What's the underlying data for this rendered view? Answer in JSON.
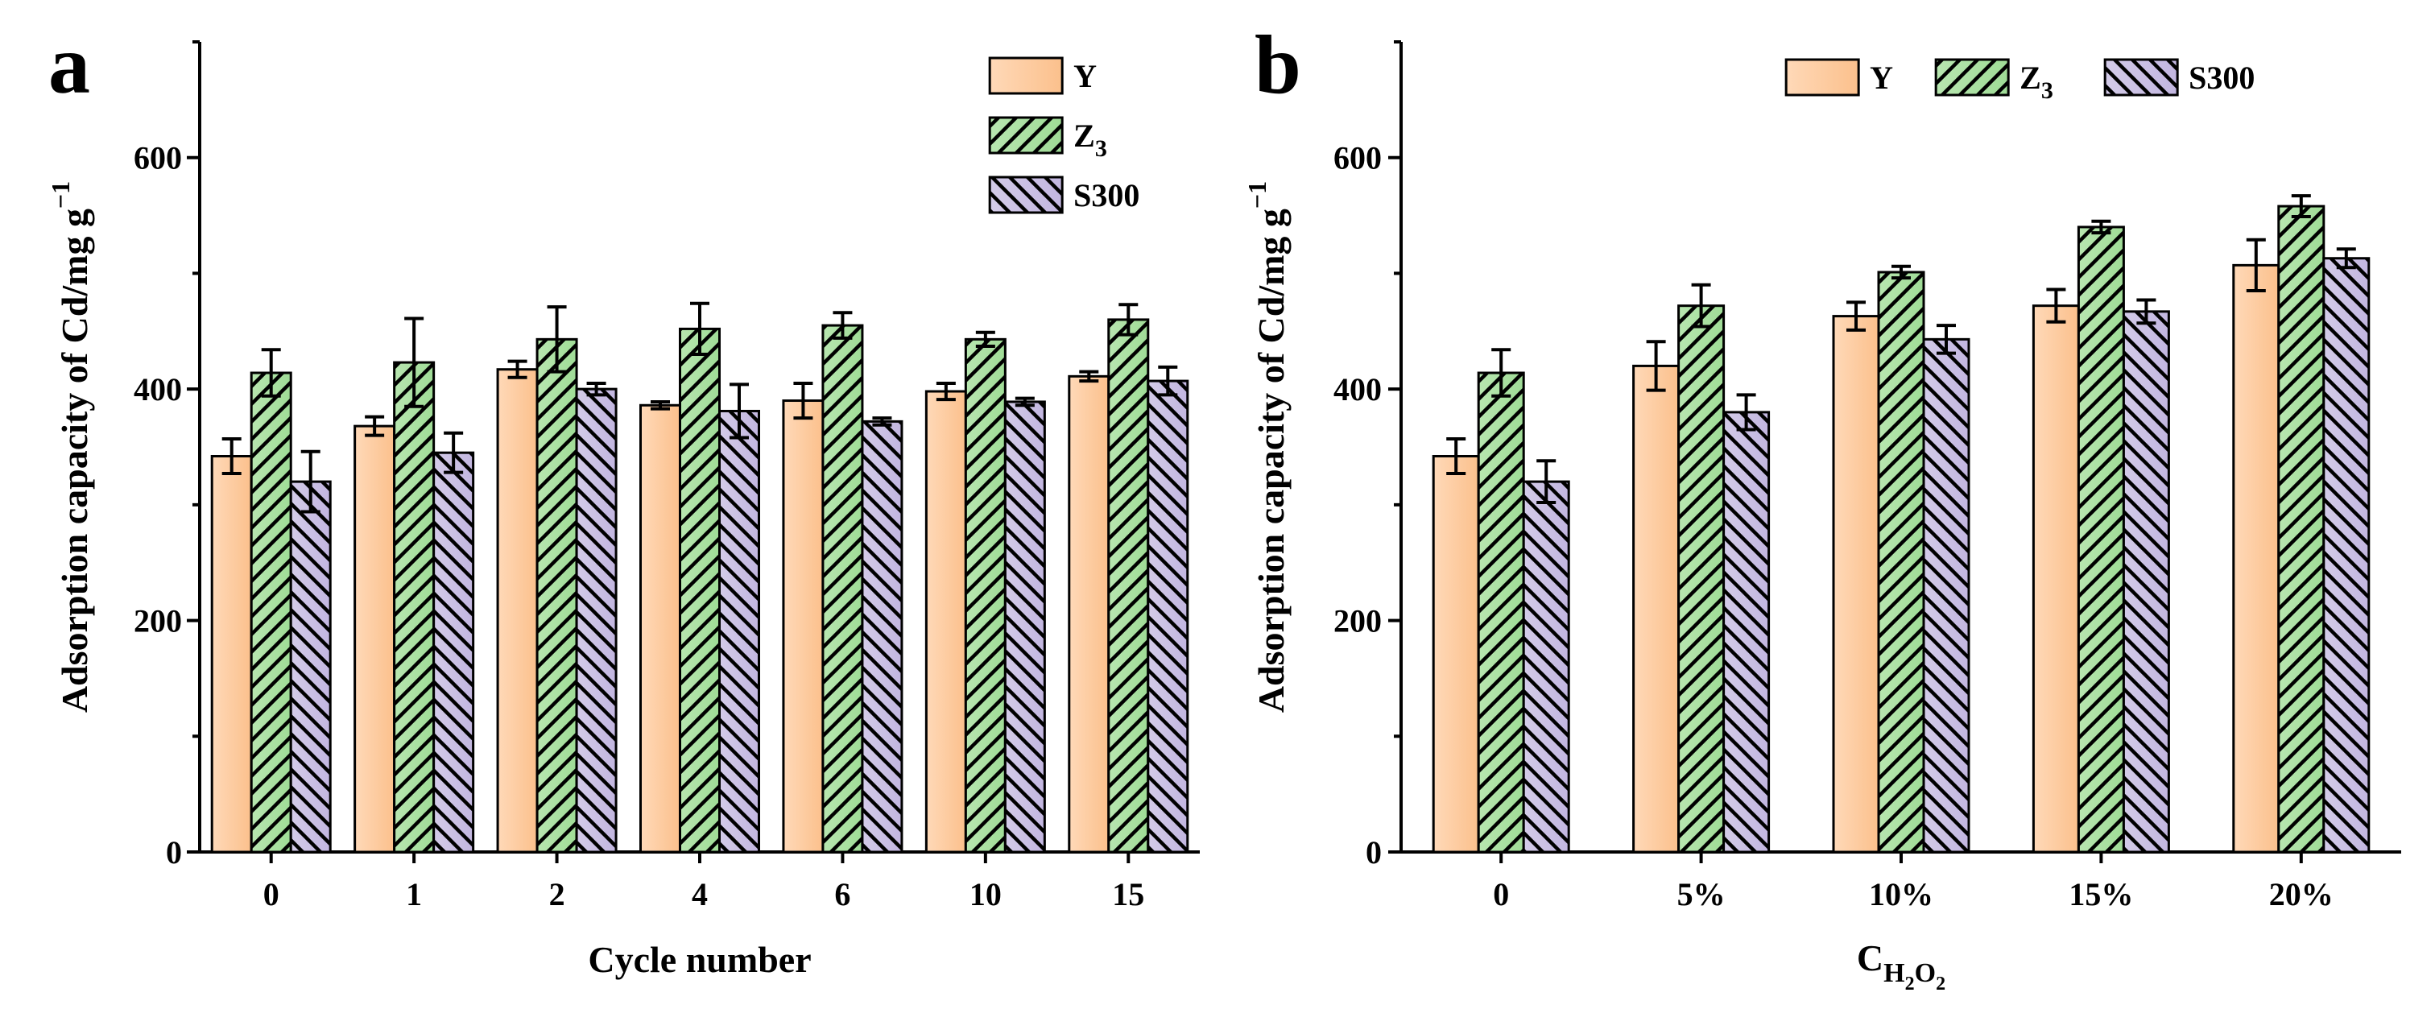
{
  "series_styles": [
    {
      "name": "Y",
      "fill_a": "#ffd9b8",
      "fill_b": "#fbc08c",
      "hatch": "none"
    },
    {
      "name": "Z3",
      "fill_a": "#b8e6b0",
      "fill_b": "#9fdc96",
      "hatch": "forward"
    },
    {
      "name": "S300",
      "fill_a": "#d3cbe8",
      "fill_b": "#c2b6e0",
      "hatch": "backward"
    }
  ],
  "chart_data": [
    {
      "type": "bar",
      "panel_label": "a",
      "xlabel": "Cycle number",
      "ylabel": "Adsorption capacity of Cd/mg g",
      "ylabel_sup": "−1",
      "ylim": [
        0,
        700
      ],
      "yticks": [
        0,
        200,
        400,
        600
      ],
      "categories": [
        "0",
        "1",
        "2",
        "4",
        "6",
        "10",
        "15"
      ],
      "legend_layout": "vertical",
      "legend_position": "top-right",
      "series": [
        {
          "name": "Y",
          "label_base": "Y",
          "label_sub": "",
          "values": [
            342,
            368,
            417,
            386,
            390,
            398,
            411
          ],
          "errors": [
            15,
            8,
            7,
            3,
            15,
            7,
            4
          ]
        },
        {
          "name": "Z3",
          "label_base": "Z",
          "label_sub": "3",
          "values": [
            414,
            423,
            443,
            452,
            455,
            443,
            460
          ],
          "errors": [
            20,
            38,
            28,
            22,
            11,
            6,
            13
          ]
        },
        {
          "name": "S300",
          "label_base": "S300",
          "label_sub": "",
          "values": [
            320,
            345,
            400,
            381,
            372,
            389,
            407
          ],
          "errors": [
            26,
            17,
            5,
            23,
            3,
            3,
            12
          ]
        }
      ]
    },
    {
      "type": "bar",
      "panel_label": "b",
      "xlabel": "C",
      "xlabel_sub": "H",
      "xlabel_sub2": "2",
      "xlabel_sub3": "O",
      "xlabel_sub4": "2",
      "ylabel": "Adsorption capacity of Cd/mg g",
      "ylabel_sup": "−1",
      "ylim": [
        0,
        700
      ],
      "yticks": [
        0,
        200,
        400,
        600
      ],
      "categories": [
        "0",
        "5%",
        "10%",
        "15%",
        "20%"
      ],
      "legend_layout": "horizontal",
      "legend_position": "top-right",
      "series": [
        {
          "name": "Y",
          "label_base": "Y",
          "label_sub": "",
          "values": [
            342,
            420,
            463,
            472,
            507
          ],
          "errors": [
            15,
            21,
            12,
            14,
            22
          ]
        },
        {
          "name": "Z3",
          "label_base": "Z",
          "label_sub": "3",
          "values": [
            414,
            472,
            501,
            540,
            558
          ],
          "errors": [
            20,
            18,
            5,
            5,
            9
          ]
        },
        {
          "name": "S300",
          "label_base": "S300",
          "label_sub": "",
          "values": [
            320,
            380,
            443,
            467,
            513
          ],
          "errors": [
            18,
            15,
            12,
            10,
            8
          ]
        }
      ]
    }
  ]
}
